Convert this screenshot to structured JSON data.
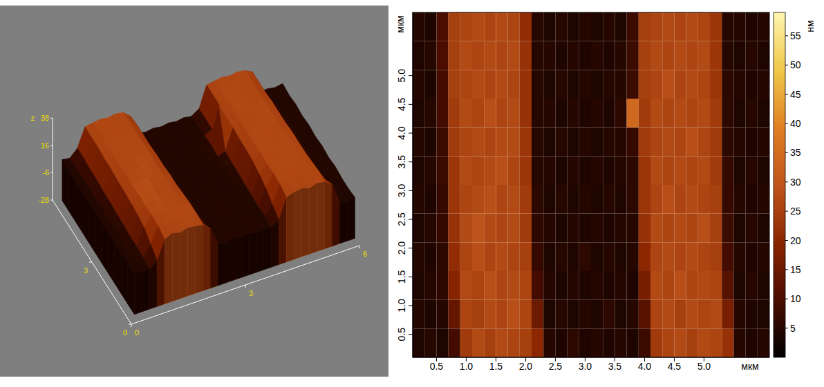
{
  "chart_data": [
    {
      "type": "surface3d",
      "z_label": "z",
      "xlim": [
        0,
        6
      ],
      "ylim": [
        0,
        6
      ],
      "zlim": [
        -28,
        38
      ],
      "xticks": [
        0,
        3,
        6
      ],
      "yticks": [
        0,
        3
      ],
      "zticks": [
        38,
        16,
        -6,
        -28
      ]
    },
    {
      "type": "heatmap",
      "x_label": "мкм",
      "y_label": "мкм",
      "colorbar_label": "нм",
      "xlim": [
        0.1,
        6.1
      ],
      "ylim": [
        0.1,
        6.1
      ],
      "xticks": [
        0.5,
        {
          "value": 1,
          "label": "1.0"
        },
        1.5,
        {
          "value": 2,
          "label": "2.0"
        },
        2.5,
        {
          "value": 3,
          "label": "3.0"
        },
        3.5,
        {
          "value": 4,
          "label": "4.0"
        },
        4.5,
        {
          "value": 5,
          "label": "5.0"
        }
      ],
      "yticks": [
        0.5,
        {
          "value": 1,
          "label": "1.0"
        },
        1.5,
        {
          "value": 2,
          "label": "2.0"
        },
        2.5,
        {
          "value": 3,
          "label": "3.0"
        },
        3.5,
        {
          "value": 4,
          "label": "4.0"
        },
        4.5,
        {
          "value": 5,
          "label": "5.0"
        }
      ],
      "colorbar_range": [
        0,
        59
      ],
      "colorbar_ticks": [
        5,
        10,
        15,
        20,
        25,
        30,
        35,
        40,
        45,
        50,
        55
      ],
      "colors": [
        "#000000",
        "#4a0d00",
        "#8a2500",
        "#c0561c",
        "#e07f22",
        "#f0c84a",
        "#fff6b0"
      ],
      "cells": {
        "x": [
          0.2,
          0.4,
          0.6,
          0.8,
          1.0,
          1.2,
          1.4,
          1.6,
          1.8,
          2.0,
          2.2,
          2.4,
          2.6,
          2.8,
          3.0,
          3.2,
          3.4,
          3.6,
          3.8,
          4.0,
          4.2,
          4.4,
          4.6,
          4.8,
          5.0,
          5.2,
          5.4,
          5.6,
          5.8,
          6.0
        ],
        "y": [
          0.35,
          0.85,
          1.35,
          1.85,
          2.35,
          2.85,
          3.35,
          3.85,
          4.35,
          4.85,
          5.35,
          5.85
        ],
        "z": [
          [
            4,
            5,
            4,
            9,
            24,
            27,
            25,
            27,
            26,
            25,
            20,
            5,
            4,
            6,
            4,
            5,
            4,
            5,
            4,
            8,
            24,
            26,
            27,
            25,
            27,
            26,
            22,
            5,
            4,
            5
          ],
          [
            5,
            4,
            5,
            14,
            26,
            25,
            27,
            26,
            28,
            26,
            15,
            4,
            5,
            4,
            5,
            4,
            6,
            4,
            5,
            12,
            26,
            27,
            25,
            27,
            26,
            27,
            17,
            5,
            4,
            4
          ],
          [
            4,
            5,
            6,
            19,
            27,
            26,
            28,
            26,
            27,
            26,
            9,
            5,
            4,
            5,
            4,
            5,
            4,
            5,
            4,
            17,
            27,
            26,
            28,
            26,
            27,
            26,
            12,
            4,
            5,
            4
          ],
          [
            5,
            4,
            6,
            21,
            26,
            28,
            26,
            27,
            26,
            25,
            7,
            4,
            5,
            4,
            6,
            4,
            5,
            4,
            5,
            20,
            26,
            27,
            26,
            27,
            26,
            25,
            9,
            5,
            4,
            5
          ],
          [
            4,
            5,
            7,
            22,
            27,
            29,
            27,
            26,
            27,
            24,
            6,
            5,
            4,
            5,
            4,
            5,
            4,
            5,
            5,
            22,
            27,
            26,
            27,
            26,
            28,
            25,
            8,
            4,
            5,
            4
          ],
          [
            5,
            4,
            7,
            23,
            26,
            27,
            28,
            26,
            27,
            24,
            6,
            4,
            5,
            4,
            5,
            4,
            5,
            4,
            6,
            23,
            26,
            28,
            26,
            27,
            26,
            25,
            7,
            5,
            4,
            5
          ],
          [
            4,
            5,
            8,
            23,
            27,
            26,
            27,
            28,
            26,
            23,
            5,
            5,
            4,
            5,
            4,
            5,
            4,
            5,
            6,
            23,
            27,
            26,
            27,
            26,
            27,
            24,
            7,
            4,
            5,
            4
          ],
          [
            5,
            4,
            8,
            24,
            26,
            27,
            26,
            27,
            27,
            23,
            5,
            4,
            5,
            4,
            5,
            4,
            5,
            5,
            7,
            24,
            26,
            27,
            26,
            28,
            26,
            24,
            6,
            5,
            4,
            5
          ],
          [
            4,
            5,
            9,
            24,
            27,
            26,
            28,
            26,
            27,
            22,
            5,
            5,
            4,
            5,
            4,
            5,
            4,
            6,
            34,
            24,
            27,
            26,
            27,
            26,
            27,
            24,
            6,
            4,
            5,
            4
          ],
          [
            5,
            4,
            9,
            25,
            26,
            27,
            26,
            27,
            26,
            22,
            5,
            4,
            5,
            4,
            5,
            4,
            5,
            5,
            8,
            25,
            26,
            28,
            26,
            27,
            26,
            23,
            6,
            5,
            4,
            5
          ],
          [
            4,
            5,
            10,
            25,
            27,
            26,
            27,
            26,
            27,
            22,
            5,
            5,
            4,
            5,
            4,
            5,
            4,
            5,
            8,
            25,
            27,
            26,
            27,
            26,
            27,
            23,
            5,
            4,
            5,
            4
          ],
          [
            5,
            4,
            10,
            25,
            26,
            27,
            26,
            27,
            26,
            21,
            5,
            4,
            5,
            4,
            5,
            4,
            5,
            4,
            8,
            25,
            26,
            27,
            26,
            27,
            26,
            23,
            5,
            5,
            4,
            5
          ]
        ]
      }
    }
  ]
}
